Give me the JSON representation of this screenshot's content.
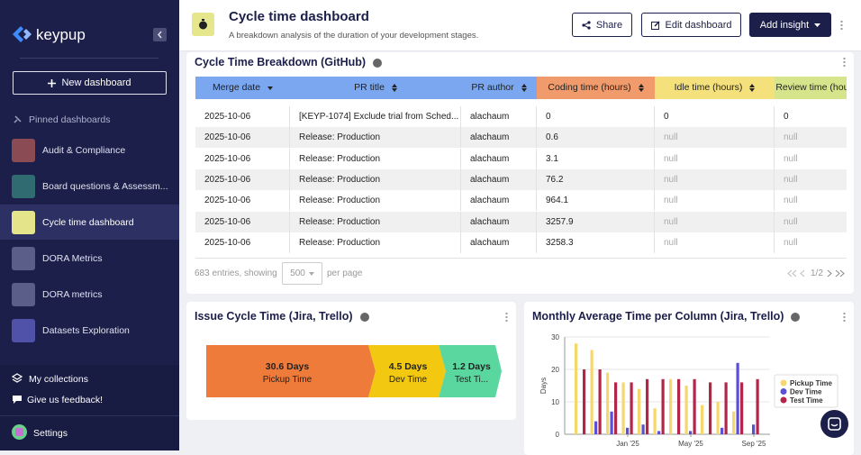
{
  "sidebar": {
    "brand": "keypup",
    "new_dashboard": "New dashboard",
    "pinned_title": "Pinned dashboards",
    "items": [
      "Audit & Compliance",
      "Board questions & Assessm...",
      "Cycle time dashboard",
      "DORA Metrics",
      "DORA metrics",
      "Datasets Exploration"
    ],
    "my_collections": "My collections",
    "feedback": "Give us feedback!",
    "settings": "Settings"
  },
  "header": {
    "title": "Cycle time dashboard",
    "subtitle": "A breakdown analysis of the duration of your development stages.",
    "share": "Share",
    "edit": "Edit dashboard",
    "add_insight": "Add insight"
  },
  "table_widget": {
    "title": "Cycle Time Breakdown (GitHub)",
    "columns": [
      "Merge date",
      "PR title",
      "PR author",
      "Coding time (hours)",
      "Idle time (hours)",
      "Review time (hours)"
    ],
    "rows": [
      [
        "2025-10-06",
        "[KEYP-1074] Exclude trial from Sched...",
        "alachaum",
        0,
        0,
        0
      ],
      [
        "2025-10-06",
        "Release: Production",
        "alachaum",
        0.6,
        "null",
        "null"
      ],
      [
        "2025-10-06",
        "Release: Production",
        "alachaum",
        3.1,
        "null",
        "null"
      ],
      [
        "2025-10-06",
        "Release: Production",
        "alachaum",
        76.2,
        "null",
        "null"
      ],
      [
        "2025-10-06",
        "Release: Production",
        "alachaum",
        964.1,
        "null",
        "null"
      ],
      [
        "2025-10-06",
        "Release: Production",
        "alachaum",
        3257.9,
        "null",
        "null"
      ],
      [
        "2025-10-06",
        "Release: Production",
        "alachaum",
        3258.3,
        "null",
        "null"
      ]
    ],
    "entries": "683 entries, showing",
    "page_size": "500",
    "per_page": "per page",
    "page": "1/2"
  },
  "funnel_widget": {
    "title": "Issue Cycle Time (Jira, Trello)",
    "stages": [
      {
        "value": "30.6 Days",
        "label": "Pickup Time"
      },
      {
        "value": "4.5 Days",
        "label": "Dev Time"
      },
      {
        "value": "1.2 Days",
        "label": "Test Ti..."
      }
    ]
  },
  "chart_data": {
    "type": "bar",
    "title": "Monthly Average Time per Column (Jira, Trello)",
    "y_label": "Days",
    "categories": [
      null,
      null,
      null,
      "Jan '25",
      null,
      null,
      null,
      "May '25",
      null,
      null,
      null,
      "Sep '25"
    ],
    "series": [
      {
        "name": "Pickup Time",
        "color": "#f5d76e",
        "values": [
          28,
          26,
          19,
          16,
          14,
          8,
          17,
          15,
          9,
          10,
          7,
          0
        ]
      },
      {
        "name": "Dev Time",
        "color": "#5b4fd6",
        "values": [
          0,
          4,
          7,
          2,
          3,
          1,
          0,
          1,
          0,
          2,
          22,
          3
        ]
      },
      {
        "name": "Test Time",
        "color": "#b3264a",
        "values": [
          20,
          20,
          16,
          16,
          17,
          17,
          17,
          17,
          16,
          16,
          16,
          17
        ]
      }
    ],
    "ylim": [
      0,
      30
    ],
    "yticks": [
      0,
      10,
      20,
      30
    ],
    "grid": true,
    "legend": "right"
  }
}
